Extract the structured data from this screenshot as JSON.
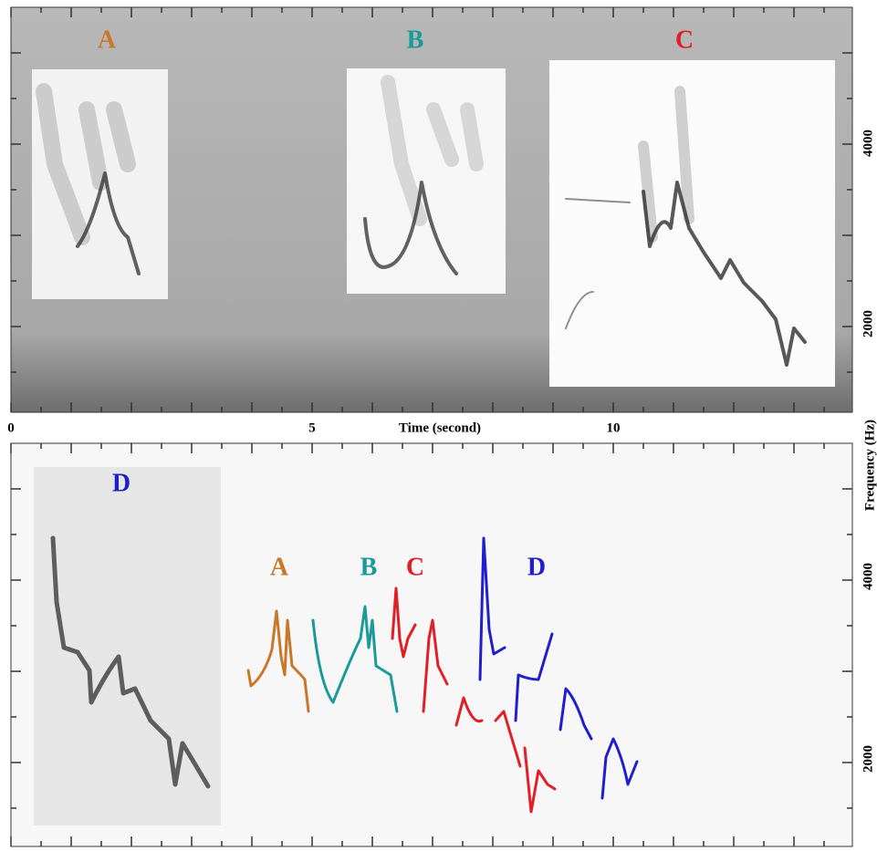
{
  "top_panel": {
    "spectrogram_labels": [
      "A",
      "B",
      "C"
    ],
    "y_tick_labels": [
      4000,
      2000
    ]
  },
  "x_axis": {
    "tick_labels": [
      0,
      5,
      10
    ],
    "title": "Time (second)"
  },
  "bottom_panel": {
    "spectrogram_label": "D",
    "trace_labels": [
      "A",
      "B",
      "C",
      "D"
    ],
    "y_tick_labels": [
      4000,
      2000
    ]
  },
  "y_axis_title": "Frequency (Hz)"
}
